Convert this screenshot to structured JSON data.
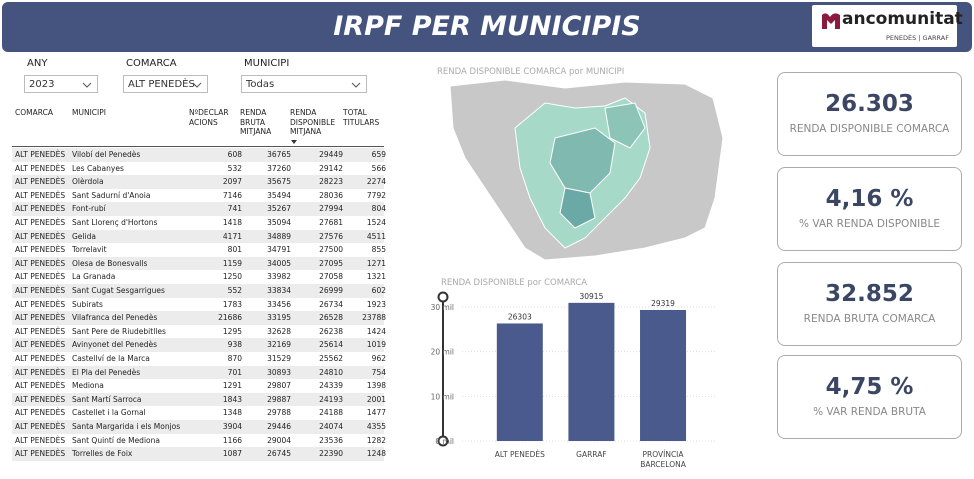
{
  "header": {
    "title": "IRPF PER MUNICIPIS"
  },
  "logo": {
    "name": "ancomunitat",
    "sub": "PENEDÈS | GARRAF"
  },
  "filters": [
    {
      "label": "ANY",
      "value": "2023"
    },
    {
      "label": "COMARCA",
      "value": "ALT PENEDÈS"
    },
    {
      "label": "MUNICIPI",
      "value": "Todas"
    }
  ],
  "table": {
    "headers": [
      [
        "COMARCA"
      ],
      [
        "MUNICIPI"
      ],
      [
        "NºDECLAR",
        "ACIONS"
      ],
      [
        "RENDA",
        "BRUTA",
        "MITJANA"
      ],
      [
        "RENDA",
        "DISPONIBLE",
        "MITJANA"
      ],
      [
        "TOTAL",
        "TITULARS"
      ]
    ],
    "rows": [
      [
        "ALT PENEDÈS",
        "Vilobí del Penedès",
        "608",
        "36765",
        "29449",
        "659"
      ],
      [
        "ALT PENEDÈS",
        "Les Cabanyes",
        "532",
        "37260",
        "29142",
        "566"
      ],
      [
        "ALT PENEDÈS",
        "Olèrdola",
        "2097",
        "35675",
        "28223",
        "2274"
      ],
      [
        "ALT PENEDÈS",
        "Sant Sadurní d'Anoia",
        "7146",
        "35494",
        "28036",
        "7792"
      ],
      [
        "ALT PENEDÈS",
        "Font-rubí",
        "741",
        "35267",
        "27994",
        "804"
      ],
      [
        "ALT PENEDÈS",
        "Sant Llorenç d'Hortons",
        "1418",
        "35094",
        "27681",
        "1524"
      ],
      [
        "ALT PENEDÈS",
        "Gelida",
        "4171",
        "34889",
        "27576",
        "4511"
      ],
      [
        "ALT PENEDÈS",
        "Torrelavit",
        "801",
        "34791",
        "27500",
        "855"
      ],
      [
        "ALT PENEDÈS",
        "Olesa de Bonesvalls",
        "1159",
        "34005",
        "27095",
        "1271"
      ],
      [
        "ALT PENEDÈS",
        "La Granada",
        "1250",
        "33982",
        "27058",
        "1321"
      ],
      [
        "ALT PENEDÈS",
        "Sant Cugat Sesgarrigues",
        "552",
        "33834",
        "26999",
        "602"
      ],
      [
        "ALT PENEDÈS",
        "Subirats",
        "1783",
        "33456",
        "26734",
        "1923"
      ],
      [
        "ALT PENEDÈS",
        "Vilafranca del Penedès",
        "21686",
        "33195",
        "26528",
        "23788"
      ],
      [
        "ALT PENEDÈS",
        "Sant Pere de Riudebitlles",
        "1295",
        "32628",
        "26238",
        "1424"
      ],
      [
        "ALT PENEDÈS",
        "Avinyonet del Penedès",
        "938",
        "32169",
        "25614",
        "1019"
      ],
      [
        "ALT PENEDÈS",
        "Castellví de la Marca",
        "870",
        "31529",
        "25562",
        "962"
      ],
      [
        "ALT PENEDÈS",
        "El Pla del Penedès",
        "701",
        "30893",
        "24810",
        "754"
      ],
      [
        "ALT PENEDÈS",
        "Mediona",
        "1291",
        "29807",
        "24339",
        "1398"
      ],
      [
        "ALT PENEDÈS",
        "Sant Martí Sarroca",
        "1843",
        "29887",
        "24193",
        "2001"
      ],
      [
        "ALT PENEDÈS",
        "Castellet i la Gornal",
        "1348",
        "29788",
        "24188",
        "1477"
      ],
      [
        "ALT PENEDÈS",
        "Santa Margarida i els Monjos",
        "3904",
        "29446",
        "24074",
        "4355"
      ],
      [
        "ALT PENEDÈS",
        "Sant Quintí de Mediona",
        "1166",
        "29004",
        "23536",
        "1282"
      ],
      [
        "ALT PENEDÈS",
        "Torrelles de Foix",
        "1087",
        "26745",
        "22390",
        "1248"
      ]
    ]
  },
  "map": {
    "title": "RENDA DISPONIBLE COMARCA por MUNICIPI"
  },
  "bar_chart": {
    "type": "bar",
    "title": "RENDA DISPONIBLE por COMARCA",
    "categories": [
      "ALT PENEDÈS",
      "GARRAF",
      "PROVÍNCIA BARCELONA"
    ],
    "values": [
      26303,
      30915,
      29319
    ],
    "color": "#4a5a8c",
    "ylim": [
      0,
      32000
    ],
    "yticks": [
      {
        "value": 0,
        "label": "0 mil"
      },
      {
        "value": 10000,
        "label": "10 mil"
      },
      {
        "value": 20000,
        "label": "20 mil"
      },
      {
        "value": 30000,
        "label": "30 mil"
      }
    ],
    "grid": true
  },
  "kpis": [
    {
      "value": "26.303",
      "label": "RENDA DISPONIBLE COMARCA"
    },
    {
      "value": "4,16 %",
      "label": "% VAR RENDA DISPONIBLE"
    },
    {
      "value": "32.852",
      "label": "RENDA BRUTA COMARCA"
    },
    {
      "value": "4,75 %",
      "label": "% VAR RENDA BRUTA"
    }
  ]
}
